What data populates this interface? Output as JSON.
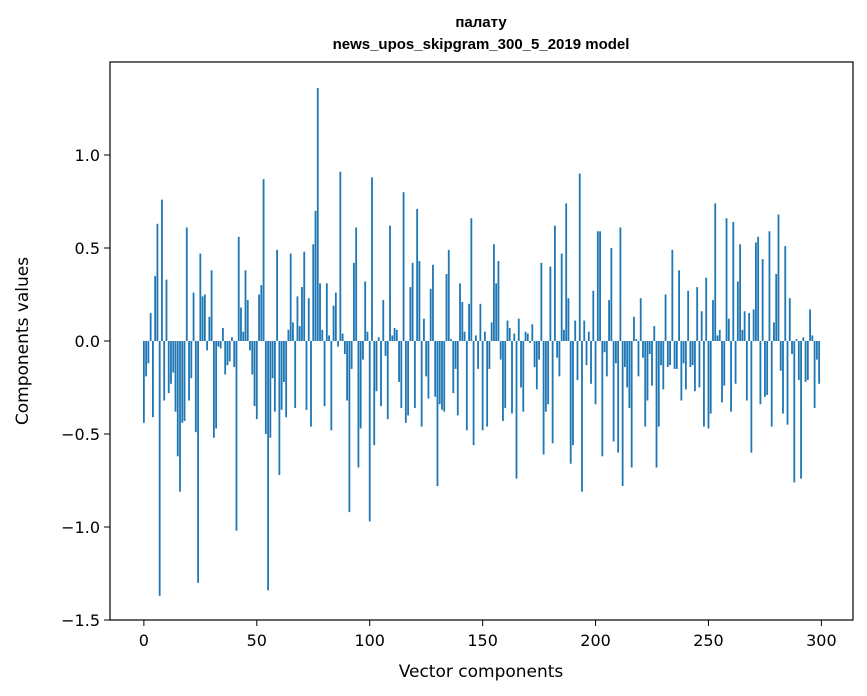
{
  "chart_data": {
    "type": "bar",
    "title_line1": "палату",
    "title_line2": "news_upos_skipgram_300_5_2019 model",
    "xlabel": "Vector components",
    "ylabel": "Components values",
    "xlim": [
      -15,
      314
    ],
    "ylim": [
      -1.5,
      1.5
    ],
    "xticks": [
      0,
      50,
      100,
      150,
      200,
      250,
      300
    ],
    "xtick_labels": [
      "0",
      "50",
      "100",
      "150",
      "200",
      "250",
      "300"
    ],
    "yticks": [
      -1.5,
      -1.0,
      -0.5,
      0.0,
      0.5,
      1.0
    ],
    "ytick_labels": [
      "−1.5",
      "−1.0",
      "−0.5",
      "0.0",
      "0.5",
      "1.0"
    ],
    "bar_color": "#1f77b4",
    "values": [
      -0.44,
      -0.19,
      -0.12,
      0.15,
      -0.41,
      0.35,
      0.63,
      -1.37,
      0.76,
      -0.32,
      0.33,
      -0.28,
      -0.23,
      -0.17,
      -0.38,
      -0.62,
      -0.81,
      -0.44,
      -0.43,
      0.61,
      -0.32,
      -0.2,
      0.26,
      -0.49,
      -1.3,
      0.47,
      0.24,
      0.25,
      -0.05,
      0.13,
      0.38,
      -0.52,
      -0.47,
      -0.03,
      -0.04,
      0.07,
      -0.18,
      -0.13,
      -0.11,
      0.02,
      -0.14,
      -1.02,
      0.56,
      0.18,
      0.05,
      0.38,
      0.22,
      -0.05,
      -0.18,
      -0.35,
      -0.42,
      0.25,
      0.3,
      0.87,
      -0.5,
      -1.34,
      -0.52,
      -0.2,
      -0.38,
      0.49,
      -0.72,
      -0.37,
      -0.22,
      -0.41,
      0.06,
      0.47,
      0.1,
      -0.36,
      0.24,
      0.08,
      0.29,
      0.48,
      -0.37,
      0.23,
      -0.46,
      0.52,
      0.7,
      1.36,
      0.31,
      0.06,
      -0.35,
      0.31,
      0.03,
      -0.48,
      0.19,
      0.26,
      -0.03,
      0.91,
      0.04,
      -0.07,
      -0.32,
      -0.92,
      -0.15,
      0.42,
      0.61,
      -0.68,
      -0.47,
      -0.1,
      0.32,
      0.05,
      -0.97,
      0.88,
      -0.56,
      -0.27,
      0.02,
      -0.35,
      0.22,
      -0.08,
      -0.42,
      0.62,
      0.03,
      0.07,
      0.06,
      -0.22,
      -0.36,
      0.8,
      -0.44,
      -0.4,
      0.29,
      0.42,
      -0.36,
      0.71,
      0.43,
      -0.46,
      0.12,
      -0.19,
      -0.31,
      0.28,
      0.41,
      -0.3,
      -0.78,
      -0.34,
      -0.37,
      -0.38,
      0.36,
      0.49,
      0.01,
      -0.28,
      -0.15,
      -0.4,
      0.31,
      0.21,
      0.05,
      -0.48,
      0.2,
      0.66,
      -0.56,
      0.03,
      -0.15,
      0.2,
      -0.48,
      0.05,
      -0.46,
      -0.15,
      0.1,
      0.52,
      0.31,
      0.43,
      -0.1,
      -0.43,
      -0.36,
      0.11,
      0.07,
      -0.39,
      0.04,
      -0.74,
      0.12,
      -0.25,
      -0.38,
      0.05,
      0.04,
      -0.01,
      0.09,
      -0.14,
      -0.26,
      -0.1,
      0.42,
      -0.61,
      -0.38,
      -0.34,
      0.4,
      -0.55,
      0.62,
      -0.09,
      -0.19,
      0.47,
      0.06,
      0.74,
      0.23,
      -0.66,
      -0.56,
      0.11,
      -0.21,
      0.9,
      -0.81,
      0.11,
      -0.13,
      0.05,
      -0.23,
      0.27,
      -0.34,
      0.59,
      0.59,
      -0.62,
      -0.06,
      -0.19,
      0.22,
      0.5,
      -0.54,
      -0.12,
      -0.6,
      0.61,
      -0.78,
      -0.14,
      -0.25,
      -0.36,
      -0.68,
      0.13,
      0.01,
      -0.19,
      0.23,
      -0.09,
      -0.46,
      -0.32,
      -0.07,
      -0.24,
      0.08,
      -0.68,
      -0.46,
      -0.13,
      -0.26,
      0.25,
      -0.14,
      -0.13,
      0.49,
      -0.15,
      -0.15,
      0.38,
      -0.32,
      -0.12,
      -0.26,
      0.27,
      -0.14,
      -0.13,
      -0.27,
      0.29,
      -0.25,
      0.16,
      -0.46,
      0.34,
      -0.47,
      -0.39,
      0.22,
      0.74,
      0.03,
      0.06,
      -0.33,
      -0.24,
      0.66,
      0.12,
      -0.38,
      0.64,
      -0.23,
      0.32,
      0.52,
      0.06,
      0.16,
      -0.32,
      0.15,
      -0.6,
      0.17,
      0.53,
      0.56,
      -0.34,
      0.44,
      -0.3,
      -0.29,
      0.59,
      -0.46,
      0.1,
      0.36,
      0.68,
      -0.16,
      -0.39,
      0.51,
      -0.45,
      0.23,
      -0.07,
      -0.76,
      0.01,
      -0.21,
      -0.74,
      0.02,
      -0.22,
      -0.21,
      0.17,
      0.03,
      -0.36,
      -0.1,
      -0.23
    ]
  }
}
